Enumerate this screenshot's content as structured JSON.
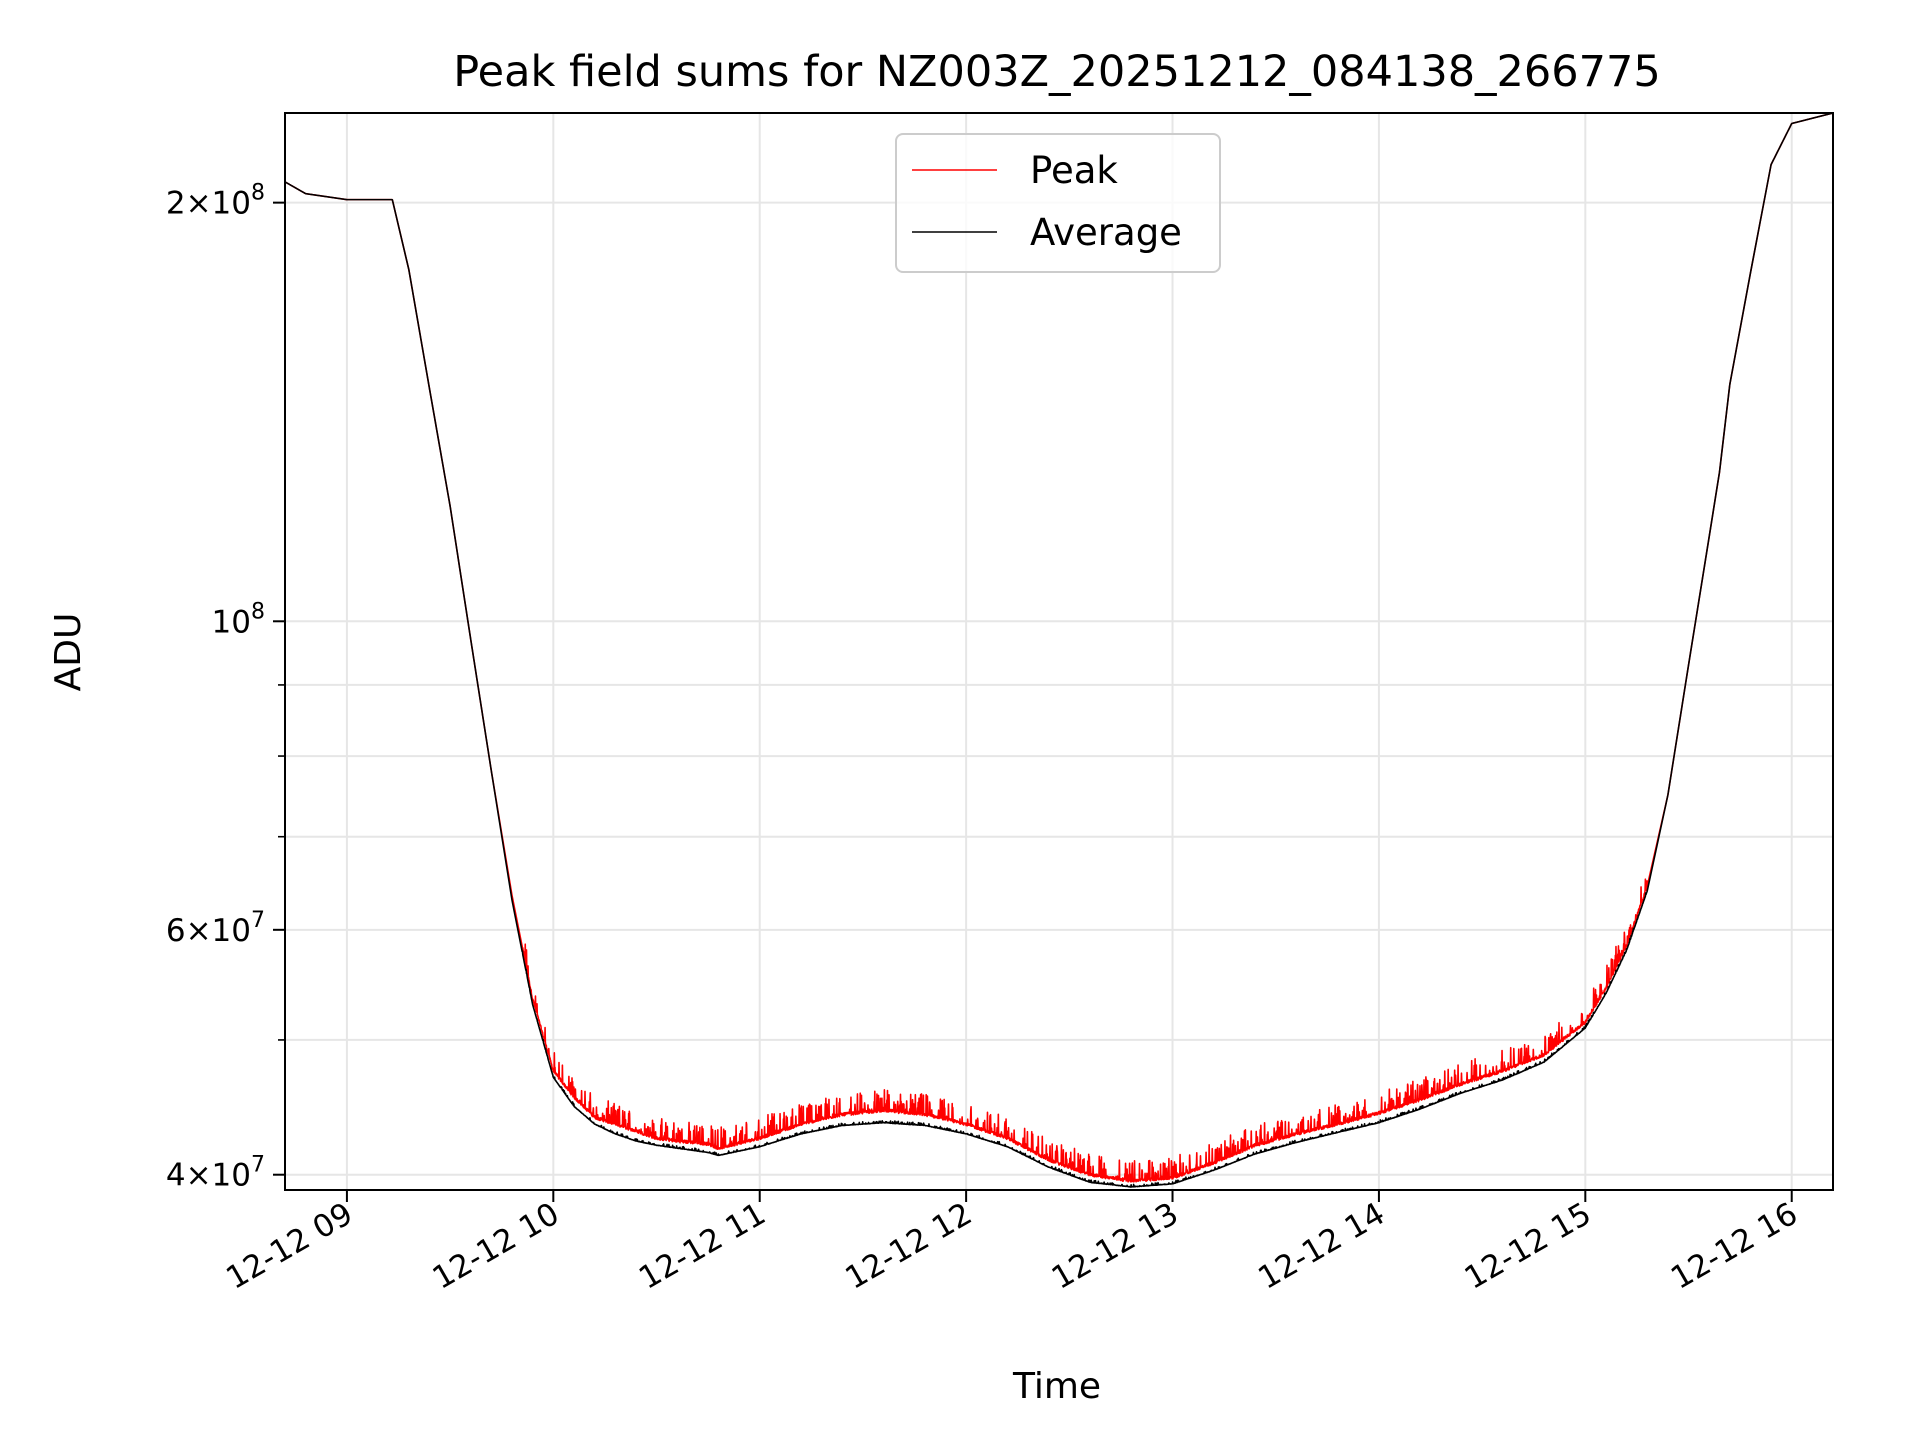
{
  "chart_data": {
    "type": "line",
    "title": "Peak field sums for NZ003Z_20251212_084138_266775",
    "xlabel": "Time",
    "ylabel": "ADU",
    "x_unit": "hours",
    "xlim": [
      8.7,
      16.2
    ],
    "ylim": [
      39000000,
      232000000
    ],
    "yscale": "log",
    "grid": true,
    "legend_position": "top-center",
    "x_ticks": [
      {
        "value": 9,
        "label": "12-12 09"
      },
      {
        "value": 10,
        "label": "12-12 10"
      },
      {
        "value": 11,
        "label": "12-12 11"
      },
      {
        "value": 12,
        "label": "12-12 12"
      },
      {
        "value": 13,
        "label": "12-12 13"
      },
      {
        "value": 14,
        "label": "12-12 14"
      },
      {
        "value": 15,
        "label": "12-12 15"
      },
      {
        "value": 16,
        "label": "12-12 16"
      }
    ],
    "y_ticks": [
      {
        "value": 40000000,
        "mantissa": "4",
        "exponent": "7"
      },
      {
        "value": 60000000,
        "mantissa": "6",
        "exponent": "7"
      },
      {
        "value": 100000000,
        "mantissa": "",
        "exponent": "8"
      },
      {
        "value": 200000000,
        "mantissa": "2",
        "exponent": "8"
      }
    ],
    "y_minor_ticks": [
      50000000,
      70000000,
      80000000,
      90000000
    ],
    "series": [
      {
        "name": "Peak",
        "color": "#ff0000",
        "noise_amplitude": 0.035,
        "x": [
          8.7,
          8.8,
          9.0,
          9.22,
          9.3,
          9.4,
          9.5,
          9.6,
          9.7,
          9.8,
          9.9,
          10.0,
          10.1,
          10.2,
          10.3,
          10.4,
          10.5,
          10.6,
          10.75,
          10.8,
          11.0,
          11.2,
          11.4,
          11.6,
          11.8,
          12.0,
          12.2,
          12.4,
          12.6,
          12.8,
          13.0,
          13.2,
          13.4,
          13.6,
          13.8,
          14.0,
          14.2,
          14.4,
          14.6,
          14.8,
          15.0,
          15.1,
          15.2,
          15.3,
          15.4,
          15.5,
          15.6,
          15.65,
          15.7,
          15.8,
          15.9,
          16.0,
          16.2
        ],
        "y": [
          207000000,
          203000000,
          201000000,
          201000000,
          179000000,
          147000000,
          121000000,
          97000000,
          78000000,
          63500000,
          53500000,
          47500000,
          45500000,
          44000000,
          43500000,
          43000000,
          42500000,
          42300000,
          42100000,
          41800000,
          42500000,
          43500000,
          44200000,
          44500000,
          44200000,
          43500000,
          42500000,
          41000000,
          40000000,
          39600000,
          39800000,
          40800000,
          42000000,
          42800000,
          43500000,
          44300000,
          45300000,
          46500000,
          47500000,
          48800000,
          51500000,
          54500000,
          58500000,
          64500000,
          75000000,
          93000000,
          115000000,
          128000000,
          148000000,
          178000000,
          213000000,
          228000000,
          232000000
        ]
      },
      {
        "name": "Average",
        "color": "#000000",
        "noise_amplitude": 0.004,
        "x": [
          8.7,
          8.8,
          9.0,
          9.22,
          9.3,
          9.4,
          9.5,
          9.6,
          9.7,
          9.8,
          9.9,
          10.0,
          10.1,
          10.2,
          10.3,
          10.4,
          10.5,
          10.6,
          10.75,
          10.8,
          11.0,
          11.2,
          11.4,
          11.6,
          11.8,
          12.0,
          12.2,
          12.4,
          12.6,
          12.8,
          13.0,
          13.2,
          13.4,
          13.6,
          13.8,
          14.0,
          14.2,
          14.4,
          14.6,
          14.8,
          15.0,
          15.1,
          15.2,
          15.3,
          15.4,
          15.5,
          15.6,
          15.65,
          15.7,
          15.8,
          15.9,
          16.0,
          16.2
        ],
        "y": [
          207000000,
          203000000,
          201000000,
          201000000,
          179000000,
          147000000,
          121000000,
          97000000,
          78000000,
          63000000,
          53000000,
          47000000,
          44800000,
          43500000,
          42800000,
          42300000,
          42000000,
          41800000,
          41500000,
          41300000,
          41900000,
          42800000,
          43400000,
          43600000,
          43400000,
          42800000,
          41900000,
          40500000,
          39500000,
          39200000,
          39400000,
          40300000,
          41400000,
          42200000,
          42900000,
          43600000,
          44600000,
          45800000,
          46800000,
          48200000,
          51000000,
          54000000,
          58000000,
          64000000,
          75000000,
          93000000,
          115000000,
          128000000,
          148000000,
          178000000,
          213000000,
          228000000,
          232000000
        ]
      }
    ]
  }
}
